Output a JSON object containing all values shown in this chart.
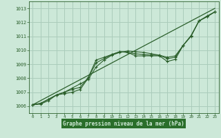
{
  "bg_color": "#cce8d8",
  "plot_bg_color": "#cce8d8",
  "bottom_bar_color": "#3a7a3a",
  "grid_color": "#aaccbb",
  "line_color": "#2a5e2a",
  "marker_color": "#2a5e2a",
  "xlabel": "Graphe pression niveau de la mer (hPa)",
  "xlabel_bg": "#2a6e2a",
  "xlabel_fg": "#cce8d8",
  "xlim": [
    -0.5,
    23.5
  ],
  "ylim": [
    1005.5,
    1013.5
  ],
  "yticks": [
    1006,
    1007,
    1008,
    1009,
    1010,
    1011,
    1012,
    1013
  ],
  "xticks": [
    0,
    1,
    2,
    3,
    4,
    5,
    6,
    7,
    8,
    9,
    10,
    11,
    12,
    13,
    14,
    15,
    16,
    17,
    18,
    19,
    20,
    21,
    22,
    23
  ],
  "series": [
    {
      "x": [
        0,
        1,
        2,
        3,
        4,
        5,
        6,
        7,
        8,
        9,
        10,
        11,
        12,
        13,
        14,
        15,
        16,
        17,
        18,
        19,
        20,
        21,
        22,
        23
      ],
      "y": [
        1006.1,
        1006.2,
        1006.5,
        1006.8,
        1006.9,
        1007.0,
        1007.2,
        1008.0,
        1009.1,
        1009.4,
        1009.7,
        1009.9,
        1009.85,
        1009.75,
        1009.7,
        1009.65,
        1009.65,
        1009.5,
        1009.6,
        1010.35,
        1011.0,
        1012.1,
        1012.4,
        1012.75
      ]
    },
    {
      "x": [
        0,
        1,
        2,
        3,
        4,
        5,
        6,
        7,
        8,
        9,
        10,
        11,
        12,
        13,
        14,
        15,
        16,
        17,
        18,
        19,
        20,
        21,
        22,
        23
      ],
      "y": [
        1006.1,
        1006.2,
        1006.5,
        1006.8,
        1007.0,
        1007.3,
        1007.6,
        1007.9,
        1008.8,
        1009.3,
        1009.65,
        1009.85,
        1009.95,
        1009.9,
        1009.85,
        1009.75,
        1009.65,
        1009.4,
        1009.5,
        1010.35,
        1011.05,
        1012.1,
        1012.45,
        1012.75
      ]
    },
    {
      "x": [
        0,
        1,
        2,
        3,
        4,
        5,
        6,
        7,
        8,
        9,
        10,
        11,
        12,
        13,
        14,
        15,
        16,
        17,
        18,
        19,
        20,
        21,
        22,
        23
      ],
      "y": [
        1006.1,
        1006.15,
        1006.4,
        1006.8,
        1007.0,
        1007.2,
        1007.35,
        1008.05,
        1009.3,
        1009.5,
        1009.7,
        1009.9,
        1009.85,
        1009.6,
        1009.6,
        1009.6,
        1009.6,
        1009.2,
        1009.35,
        1010.35,
        1011.05,
        1012.1,
        1012.4,
        1012.75
      ]
    },
    {
      "x": [
        0,
        23
      ],
      "y": [
        1006.1,
        1013.0
      ]
    }
  ]
}
